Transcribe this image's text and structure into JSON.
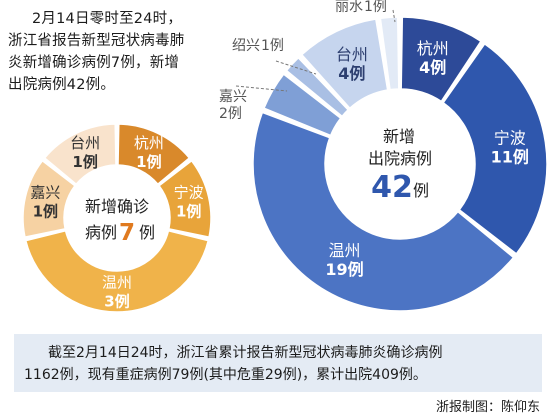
{
  "intro": {
    "lines": [
      "2月14日零时至24时，",
      "浙江省报告新型冠状病毒肺",
      "炎新增确诊病例7例，新增",
      "出院病例42例。"
    ]
  },
  "chart_data": [
    {
      "type": "pie",
      "center_label": [
        "新增确诊",
        "病例",
        "7",
        "例"
      ],
      "total": 7,
      "slices": [
        {
          "name": "杭州",
          "value": 1,
          "label": "1例",
          "color": "#d9892b",
          "text_color": "#ffffff"
        },
        {
          "name": "宁波",
          "value": 1,
          "label": "1例",
          "color": "#e8a43a",
          "text_color": "#ffffff"
        },
        {
          "name": "温州",
          "value": 3,
          "label": "3例",
          "color": "#f0b34a",
          "text_color": "#ffffff"
        },
        {
          "name": "嘉兴",
          "value": 1,
          "label": "1例",
          "color": "#f6d2a3",
          "text_color": "#333333"
        },
        {
          "name": "台州",
          "value": 1,
          "label": "1例",
          "color": "#f9e3cc",
          "text_color": "#333333"
        }
      ]
    },
    {
      "type": "pie",
      "center_label": [
        "新增",
        "出院病例",
        "42",
        "例"
      ],
      "total": 42,
      "slices": [
        {
          "name": "杭州",
          "value": 4,
          "label": "4例",
          "color": "#2d4a98",
          "text_color": "#ffffff",
          "callout": false
        },
        {
          "name": "宁波",
          "value": 11,
          "label": "11例",
          "color": "#2f57ad",
          "text_color": "#ffffff",
          "callout": false
        },
        {
          "name": "温州",
          "value": 19,
          "label": "19例",
          "color": "#4c74c4",
          "text_color": "#ffffff",
          "callout": false
        },
        {
          "name": "嘉兴",
          "value": 2,
          "label": "2例",
          "color": "#7f9fd6",
          "text_color": "#555555",
          "callout": true
        },
        {
          "name": "绍兴",
          "value": 1,
          "label": "1例",
          "color": "#a9bfe4",
          "text_color": "#555555",
          "callout": true
        },
        {
          "name": "台州",
          "value": 4,
          "label": "4例",
          "color": "#c6d5ee",
          "text_color": "#2d3f70",
          "callout": false
        },
        {
          "name": "丽水",
          "value": 1,
          "label": "1例",
          "color": "#e2eaf6",
          "text_color": "#555555",
          "callout": true
        }
      ]
    }
  ],
  "footer": {
    "lines": [
      "截至2月14日24时，浙江省累计报告新型冠状病毒肺炎确诊病例",
      "1162例，现有重症病例79例(其中危重29例)，累计出院409例。"
    ]
  },
  "credit": "浙报制图：陈仰东"
}
